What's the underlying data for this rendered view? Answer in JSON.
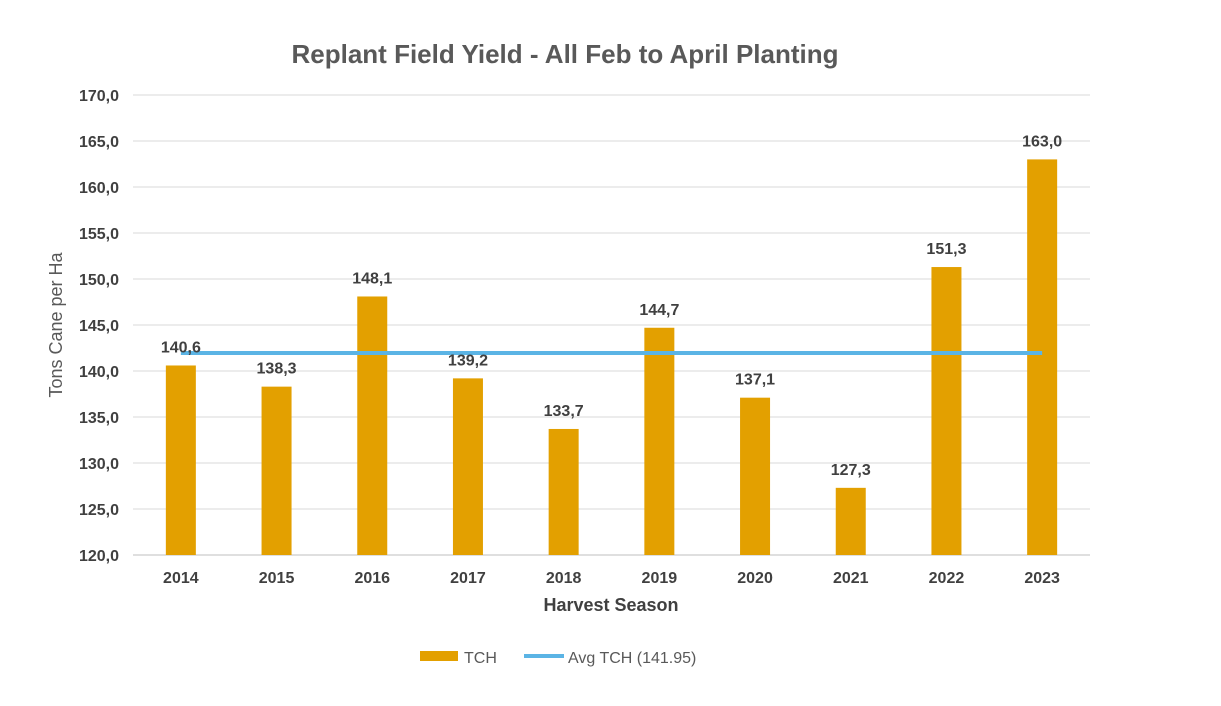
{
  "chart_data": {
    "type": "bar",
    "title": "Replant Field Yield - All Feb to April Planting",
    "xlabel": "Harvest Season",
    "ylabel": "Tons Cane per Ha",
    "categories": [
      "2014",
      "2015",
      "2016",
      "2017",
      "2018",
      "2019",
      "2020",
      "2021",
      "2022",
      "2023"
    ],
    "series": [
      {
        "name": "TCH",
        "type": "bar",
        "color": "#E3A000",
        "values": [
          140.6,
          138.3,
          148.1,
          139.2,
          133.7,
          144.7,
          137.1,
          127.3,
          151.3,
          163.0
        ],
        "labels": [
          "140,6",
          "138,3",
          "148,1",
          "139,2",
          "133,7",
          "144,7",
          "137,1",
          "127,3",
          "151,3",
          "163,0"
        ]
      },
      {
        "name": "Avg TCH (141.95)",
        "type": "line",
        "color": "#5BB4E5",
        "values": [
          141.95,
          141.95,
          141.95,
          141.95,
          141.95,
          141.95,
          141.95,
          141.95,
          141.95,
          141.95
        ]
      }
    ],
    "ylim": [
      120,
      170
    ],
    "yticks": [
      "120,0",
      "125,0",
      "130,0",
      "135,0",
      "140,0",
      "145,0",
      "150,0",
      "155,0",
      "160,0",
      "165,0",
      "170,0"
    ],
    "ytick_values": [
      120,
      125,
      130,
      135,
      140,
      145,
      150,
      155,
      160,
      165,
      170
    ],
    "grid": true,
    "legend_position": "bottom-center"
  }
}
